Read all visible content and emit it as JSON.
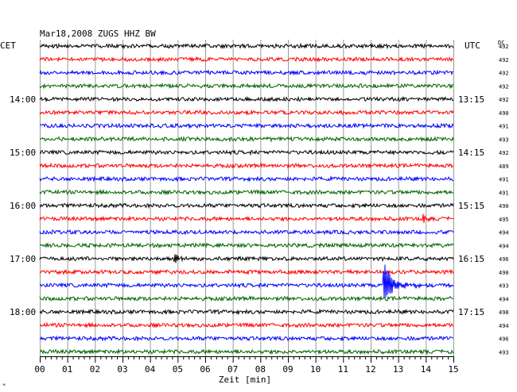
{
  "header": {
    "title": "Mar18,2008   ZUGS HHZ BW",
    "left_timezone": "CET",
    "right_timezone": "UTC",
    "dc_label": "DC"
  },
  "chart_data": {
    "type": "line",
    "title": "Mar18,2008   ZUGS HHZ BW",
    "xlabel": "Zeit [min]",
    "ylabel": "",
    "xlim": [
      0,
      15
    ],
    "x_ticks": [
      "00",
      "01",
      "02",
      "03",
      "04",
      "05",
      "06",
      "07",
      "08",
      "09",
      "10",
      "11",
      "12",
      "13",
      "14",
      "15"
    ],
    "grid": true,
    "trace_colors": [
      "#000000",
      "#ff0000",
      "#0000ff",
      "#006400"
    ],
    "left_hour_labels": [
      "14:00",
      "15:00",
      "16:00",
      "17:00",
      "18:00"
    ],
    "right_hour_labels": [
      "13:15",
      "14:15",
      "15:15",
      "16:15",
      "17:15"
    ],
    "dc_offsets": [
      492,
      492,
      492,
      492,
      492,
      490,
      491,
      493,
      492,
      489,
      491,
      491,
      490,
      495,
      494,
      494,
      496,
      490,
      493,
      494,
      498,
      494,
      496,
      493
    ],
    "events": [
      {
        "trace": 13,
        "minute": 13.9,
        "amplitude": "small"
      },
      {
        "trace": 16,
        "minute": 4.9,
        "amplitude": "small"
      },
      {
        "trace": 18,
        "minute": 12.5,
        "amplitude": "large"
      }
    ]
  },
  "corner_mark": "*"
}
